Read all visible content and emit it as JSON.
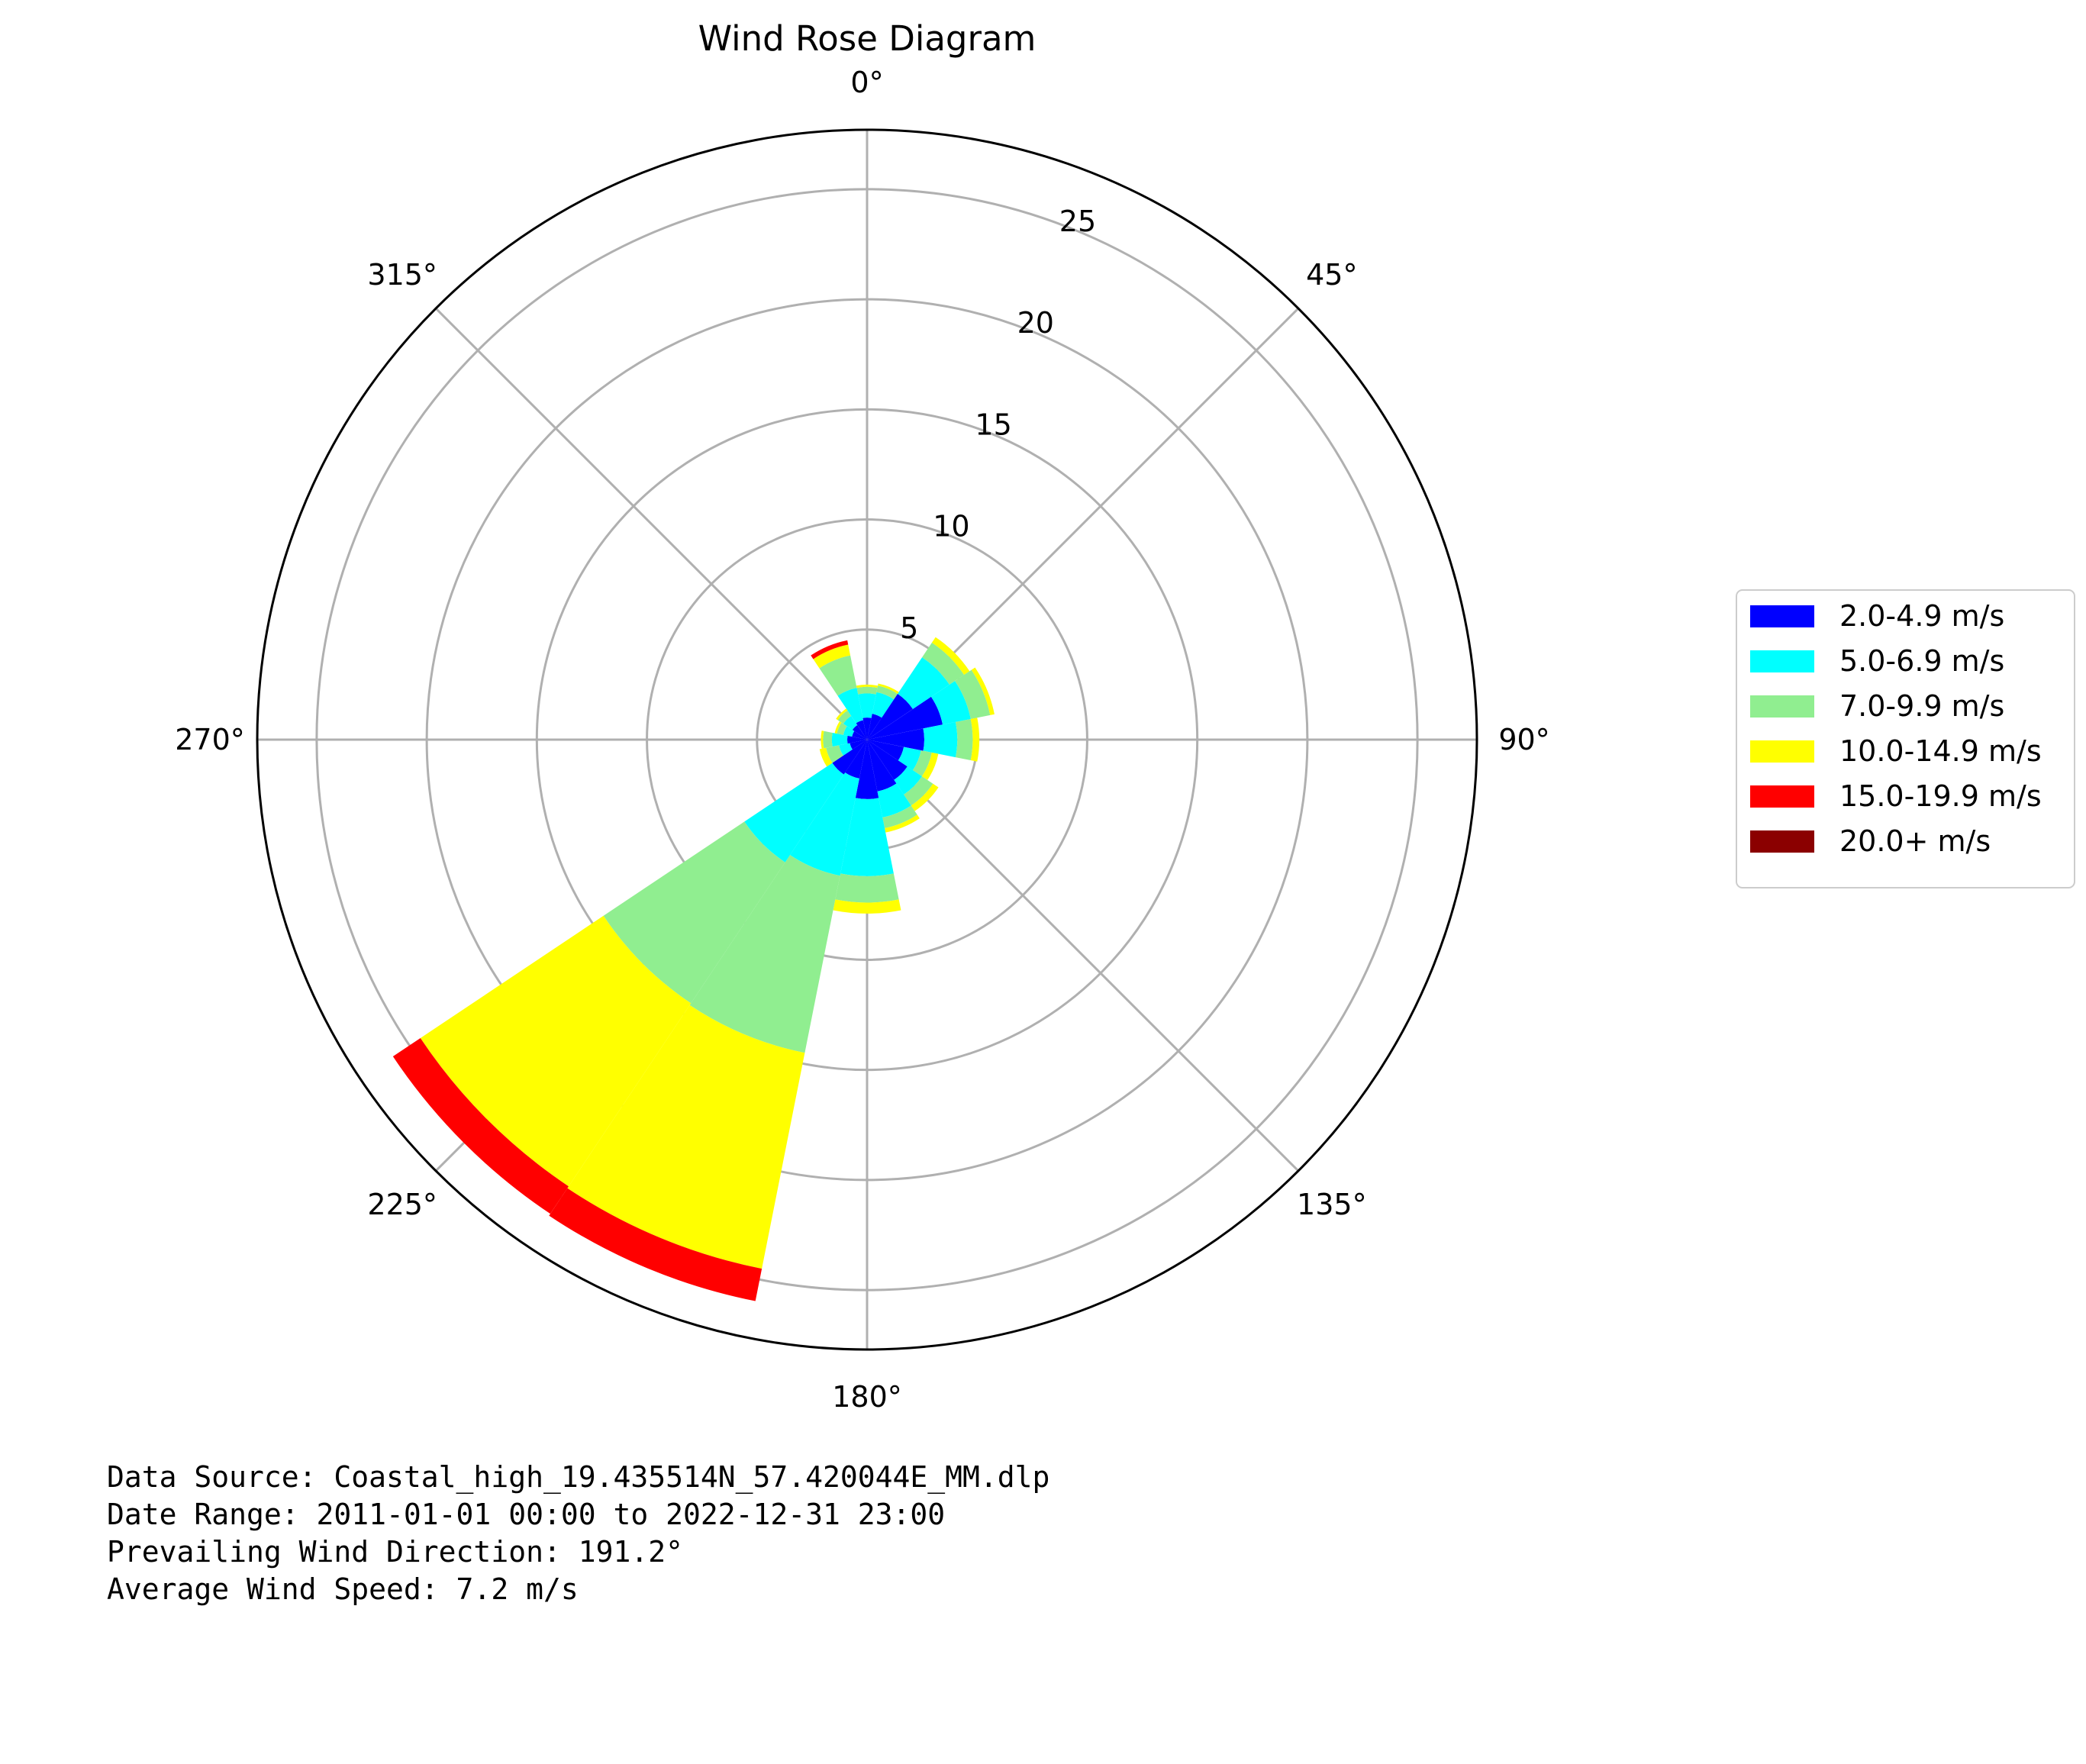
{
  "chart_data": {
    "type": "windrose",
    "title": "Wind Rose Diagram",
    "angle_ticks": [
      "0°",
      "45°",
      "90°",
      "135°",
      "180°",
      "225°",
      "270°",
      "315°"
    ],
    "angle_tick_degrees": [
      0,
      45,
      90,
      135,
      180,
      225,
      270,
      315
    ],
    "radial_ticks": [
      5,
      10,
      15,
      20,
      25
    ],
    "rlim": [
      0,
      27.7
    ],
    "direction": "clockwise",
    "zero_location": "north",
    "grid": true,
    "legend_position": "right",
    "sector_width_deg": 22.5,
    "series": [
      {
        "name": "2.0-4.9 m/s",
        "color": "#0000ff",
        "values": [
          1.0,
          1.2,
          2.5,
          3.5,
          2.6,
          1.7,
          2.2,
          2.4,
          2.7,
          1.8,
          1.9,
          0.8,
          0.9,
          0.7,
          0.8,
          0.9
        ]
      },
      {
        "name": "5.0-6.9 m/s",
        "color": "#00ffff",
        "values": [
          1.1,
          1.0,
          2.0,
          1.3,
          1.5,
          0.8,
          0.8,
          1.2,
          3.5,
          4.5,
          4.8,
          0.5,
          0.7,
          0.4,
          0.5,
          1.5
        ]
      },
      {
        "name": "7.0-9.9 m/s",
        "color": "#90ee90",
        "values": [
          0.3,
          0.3,
          0.8,
          0.9,
          0.7,
          0.5,
          0.6,
          0.5,
          1.2,
          8.2,
          7.7,
          0.6,
          0.4,
          0.3,
          0.3,
          1.5
        ]
      },
      {
        "name": "10.0-14.9 m/s",
        "color": "#ffff00",
        "values": [
          0.1,
          0.1,
          0.3,
          0.2,
          0.3,
          0.3,
          0.3,
          0.2,
          0.5,
          10.0,
          10.0,
          0.3,
          0.1,
          0.1,
          0.1,
          0.5
        ]
      },
      {
        "name": "15.0-19.9 m/s",
        "color": "#ff0000",
        "values": [
          0,
          0,
          0,
          0,
          0,
          0,
          0,
          0,
          0,
          1.5,
          1.5,
          0,
          0,
          0,
          0,
          0.2
        ]
      },
      {
        "name": "20.0+ m/s",
        "color": "#8b0000",
        "values": [
          0,
          0,
          0,
          0,
          0,
          0,
          0,
          0,
          0,
          0,
          0,
          0,
          0,
          0,
          0,
          0
        ]
      }
    ]
  },
  "info": {
    "line1": "Data Source: Coastal_high_19.435514N_57.420044E_MM.dlp",
    "line2": "Date Range: 2011-01-01 00:00 to 2022-12-31 23:00",
    "line3": "Prevailing Wind Direction: 191.2°",
    "line4": "Average Wind Speed: 7.2 m/s"
  }
}
